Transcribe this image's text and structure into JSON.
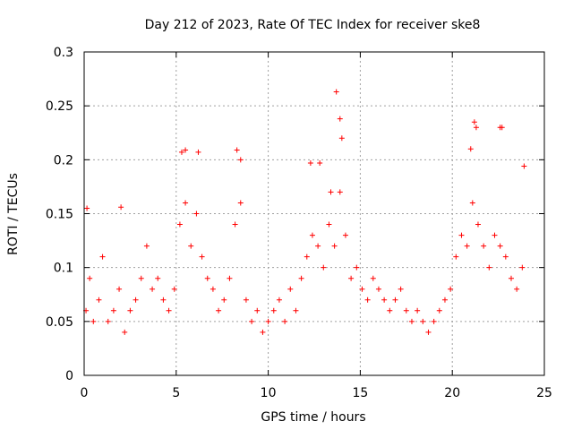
{
  "chart_data": {
    "type": "scatter",
    "title": "Day 212 of 2023, Rate Of TEC Index for receiver ske8",
    "xlabel": "GPS time / hours",
    "ylabel": "ROTI / TECUs",
    "xlim": [
      0,
      25
    ],
    "ylim": [
      0,
      0.3
    ],
    "xticks": [
      "0",
      "5",
      "10",
      "15",
      "20",
      "25"
    ],
    "yticks": [
      "0",
      "0.05",
      "0.1",
      "0.15",
      "0.2",
      "0.25",
      "0.3"
    ],
    "grid": true,
    "marker": "plus",
    "color": "#ff0000",
    "x": [
      0.1,
      0.3,
      0.5,
      0.8,
      1.0,
      1.3,
      1.6,
      1.9,
      2.2,
      2.5,
      2.8,
      3.1,
      3.4,
      3.7,
      4.0,
      4.3,
      4.6,
      4.9,
      5.2,
      5.5,
      5.8,
      6.1,
      6.4,
      6.7,
      7.0,
      7.3,
      7.6,
      7.9,
      8.2,
      8.5,
      8.8,
      9.1,
      9.4,
      9.7,
      10.0,
      10.3,
      10.6,
      10.9,
      11.2,
      11.5,
      11.8,
      12.1,
      12.4,
      12.7,
      13.0,
      13.3,
      13.6,
      13.9,
      14.2,
      14.5,
      14.8,
      15.1,
      15.4,
      15.7,
      16.0,
      16.3,
      16.6,
      16.9,
      17.2,
      17.5,
      17.8,
      18.1,
      18.4,
      18.7,
      19.0,
      19.3,
      19.6,
      19.9,
      20.2,
      20.5,
      20.8,
      21.1,
      21.4,
      21.7,
      22.0,
      22.3,
      22.6,
      22.9,
      23.2,
      23.5,
      23.8,
      0.15,
      2.0,
      5.3,
      5.5,
      6.2,
      8.3,
      8.5,
      12.3,
      12.8,
      13.4,
      13.7,
      13.9,
      14.0,
      21.0,
      21.2,
      21.3,
      22.6,
      22.7,
      23.9
    ],
    "y": [
      0.06,
      0.09,
      0.05,
      0.07,
      0.11,
      0.05,
      0.06,
      0.08,
      0.04,
      0.06,
      0.07,
      0.09,
      0.12,
      0.08,
      0.09,
      0.07,
      0.06,
      0.08,
      0.14,
      0.16,
      0.12,
      0.15,
      0.11,
      0.09,
      0.08,
      0.06,
      0.07,
      0.09,
      0.14,
      0.16,
      0.07,
      0.05,
      0.06,
      0.04,
      0.05,
      0.06,
      0.07,
      0.05,
      0.08,
      0.06,
      0.09,
      0.11,
      0.13,
      0.12,
      0.1,
      0.14,
      0.12,
      0.17,
      0.13,
      0.09,
      0.1,
      0.08,
      0.07,
      0.09,
      0.08,
      0.07,
      0.06,
      0.07,
      0.08,
      0.06,
      0.05,
      0.06,
      0.05,
      0.04,
      0.05,
      0.06,
      0.07,
      0.08,
      0.11,
      0.13,
      0.12,
      0.16,
      0.14,
      0.12,
      0.1,
      0.13,
      0.12,
      0.11,
      0.09,
      0.08,
      0.1,
      0.155,
      0.156,
      0.207,
      0.209,
      0.207,
      0.209,
      0.2,
      0.197,
      0.197,
      0.17,
      0.263,
      0.238,
      0.22,
      0.21,
      0.235,
      0.23,
      0.23,
      0.23,
      0.194
    ]
  }
}
